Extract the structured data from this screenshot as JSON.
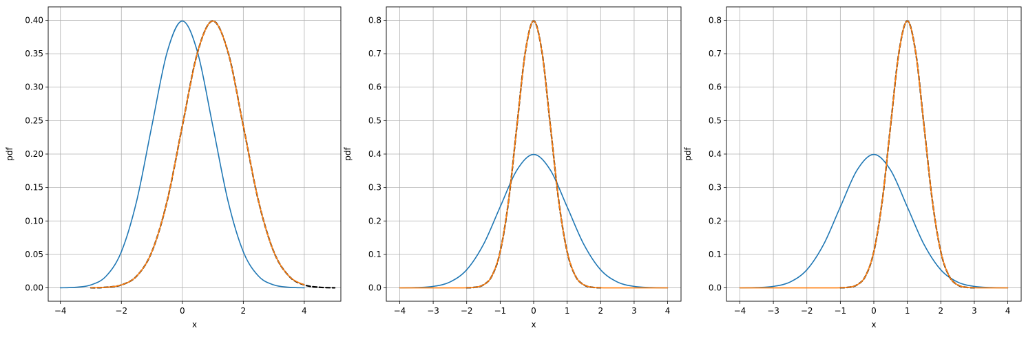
{
  "chart_data": [
    {
      "type": "line",
      "title": "",
      "xlabel": "x",
      "ylabel": "pdf",
      "xlim": [
        -4.4,
        5.2
      ],
      "ylim": [
        -0.02,
        0.42
      ],
      "xticks": [
        -4,
        -2,
        0,
        2,
        4
      ],
      "xtick_labels": [
        "−4",
        "−2",
        "0",
        "2",
        "4"
      ],
      "yticks": [
        0.0,
        0.05,
        0.1,
        0.15,
        0.2,
        0.25,
        0.3,
        0.35,
        0.4
      ],
      "ytick_labels": [
        "0.00",
        "0.05",
        "0.10",
        "0.15",
        "0.20",
        "0.25",
        "0.30",
        "0.35",
        "0.40"
      ],
      "grid": true,
      "legend": "none",
      "series": [
        {
          "color": "#1f77b4",
          "style": "solid",
          "x": [
            -4.0,
            -3.5,
            -3.0,
            -2.5,
            -2.0,
            -1.5,
            -1.0,
            -0.5,
            0.0,
            0.5,
            1.0,
            1.5,
            2.0,
            2.5,
            3.0,
            3.5,
            4.0
          ],
          "y": [
            0.0001,
            0.0009,
            0.0044,
            0.0175,
            0.054,
            0.1295,
            0.242,
            0.3521,
            0.3989,
            0.3521,
            0.242,
            0.1295,
            0.054,
            0.0175,
            0.0044,
            0.0009,
            0.0001
          ]
        },
        {
          "color": "#000000",
          "style": "dashed",
          "x": [
            -3.0,
            -2.5,
            -2.0,
            -1.5,
            -1.0,
            -0.5,
            0.0,
            0.5,
            1.0,
            1.5,
            2.0,
            2.5,
            3.0,
            3.5,
            4.0,
            4.5,
            5.0
          ],
          "y": [
            0.0001,
            0.0009,
            0.0044,
            0.0175,
            0.054,
            0.1295,
            0.242,
            0.3521,
            0.3989,
            0.3521,
            0.242,
            0.1295,
            0.054,
            0.0175,
            0.0044,
            0.0009,
            0.0001
          ]
        },
        {
          "color": "#ff7f0e",
          "style": "solid",
          "x": [
            -3.0,
            -2.5,
            -2.0,
            -1.5,
            -1.0,
            -0.5,
            0.0,
            0.5,
            1.0,
            1.5,
            2.0,
            2.5,
            3.0,
            3.5,
            4.0
          ],
          "y": [
            0.0001,
            0.0009,
            0.0044,
            0.0175,
            0.054,
            0.1295,
            0.242,
            0.3521,
            0.3989,
            0.3521,
            0.242,
            0.1295,
            0.054,
            0.0175,
            0.0044
          ]
        }
      ]
    },
    {
      "type": "line",
      "title": "",
      "xlabel": "x",
      "ylabel": "pdf",
      "xlim": [
        -4.4,
        4.4
      ],
      "ylim": [
        -0.04,
        0.84
      ],
      "xticks": [
        -4,
        -3,
        -2,
        -1,
        0,
        1,
        2,
        3,
        4
      ],
      "xtick_labels": [
        "−4",
        "−3",
        "−2",
        "−1",
        "0",
        "1",
        "2",
        "3",
        "4"
      ],
      "yticks": [
        0.0,
        0.1,
        0.2,
        0.3,
        0.4,
        0.5,
        0.6,
        0.7,
        0.8
      ],
      "ytick_labels": [
        "0.0",
        "0.1",
        "0.2",
        "0.3",
        "0.4",
        "0.5",
        "0.6",
        "0.7",
        "0.8"
      ],
      "grid": true,
      "legend": "none",
      "series": [
        {
          "color": "#1f77b4",
          "style": "solid",
          "x": [
            -4.0,
            -3.5,
            -3.0,
            -2.5,
            -2.0,
            -1.5,
            -1.0,
            -0.5,
            0.0,
            0.5,
            1.0,
            1.5,
            2.0,
            2.5,
            3.0,
            3.5,
            4.0
          ],
          "y": [
            0.0001,
            0.0009,
            0.0044,
            0.0175,
            0.054,
            0.1295,
            0.242,
            0.3521,
            0.3989,
            0.3521,
            0.242,
            0.1295,
            0.054,
            0.0175,
            0.0044,
            0.0009,
            0.0001
          ]
        },
        {
          "color": "#000000",
          "style": "dashed",
          "x": [
            -2.0,
            -1.75,
            -1.5,
            -1.25,
            -1.0,
            -0.75,
            -0.5,
            -0.25,
            0.0,
            0.25,
            0.5,
            0.75,
            1.0,
            1.25,
            1.5,
            1.75,
            2.0
          ],
          "y": [
            0.0003,
            0.0018,
            0.0089,
            0.035,
            0.108,
            0.259,
            0.484,
            0.704,
            0.798,
            0.704,
            0.484,
            0.259,
            0.108,
            0.035,
            0.0089,
            0.0018,
            0.0003
          ]
        },
        {
          "color": "#ff7f0e",
          "style": "solid",
          "x": [
            -4.0,
            -3.0,
            -2.5,
            -2.0,
            -1.75,
            -1.5,
            -1.25,
            -1.0,
            -0.75,
            -0.5,
            -0.25,
            0.0,
            0.25,
            0.5,
            0.75,
            1.0,
            1.25,
            1.5,
            1.75,
            2.0,
            2.5,
            3.0,
            4.0
          ],
          "y": [
            0.0,
            0.0,
            0.0,
            0.0003,
            0.0018,
            0.0089,
            0.035,
            0.108,
            0.259,
            0.484,
            0.704,
            0.798,
            0.704,
            0.484,
            0.259,
            0.108,
            0.035,
            0.0089,
            0.0018,
            0.0003,
            0.0,
            0.0,
            0.0
          ]
        }
      ]
    },
    {
      "type": "line",
      "title": "",
      "xlabel": "x",
      "ylabel": "pdf",
      "xlim": [
        -4.4,
        4.4
      ],
      "ylim": [
        -0.04,
        0.84
      ],
      "xticks": [
        -4,
        -3,
        -2,
        -1,
        0,
        1,
        2,
        3,
        4
      ],
      "xtick_labels": [
        "−4",
        "−3",
        "−2",
        "−1",
        "0",
        "1",
        "2",
        "3",
        "4"
      ],
      "yticks": [
        0.0,
        0.1,
        0.2,
        0.3,
        0.4,
        0.5,
        0.6,
        0.7,
        0.8
      ],
      "ytick_labels": [
        "0.0",
        "0.1",
        "0.2",
        "0.3",
        "0.4",
        "0.5",
        "0.6",
        "0.7",
        "0.8"
      ],
      "grid": true,
      "legend": "none",
      "series": [
        {
          "color": "#1f77b4",
          "style": "solid",
          "x": [
            -4.0,
            -3.5,
            -3.0,
            -2.5,
            -2.0,
            -1.5,
            -1.0,
            -0.5,
            0.0,
            0.5,
            1.0,
            1.5,
            2.0,
            2.5,
            3.0,
            3.5,
            4.0
          ],
          "y": [
            0.0001,
            0.0009,
            0.0044,
            0.0175,
            0.054,
            0.1295,
            0.242,
            0.3521,
            0.3989,
            0.3521,
            0.242,
            0.1295,
            0.054,
            0.0175,
            0.0044,
            0.0009,
            0.0001
          ]
        },
        {
          "color": "#000000",
          "style": "dashed",
          "x": [
            -1.0,
            -0.75,
            -0.5,
            -0.25,
            0.0,
            0.25,
            0.5,
            0.75,
            1.0,
            1.25,
            1.5,
            1.75,
            2.0,
            2.25,
            2.5,
            2.75,
            3.0
          ],
          "y": [
            0.0003,
            0.0018,
            0.0089,
            0.035,
            0.108,
            0.259,
            0.484,
            0.704,
            0.798,
            0.704,
            0.484,
            0.259,
            0.108,
            0.035,
            0.0089,
            0.0018,
            0.0003
          ]
        },
        {
          "color": "#ff7f0e",
          "style": "solid",
          "x": [
            -4.0,
            -2.0,
            -1.5,
            -1.0,
            -0.75,
            -0.5,
            -0.25,
            0.0,
            0.25,
            0.5,
            0.75,
            1.0,
            1.25,
            1.5,
            1.75,
            2.0,
            2.25,
            2.5,
            2.75,
            3.0,
            3.5,
            4.0
          ],
          "y": [
            0.0,
            0.0,
            0.0,
            0.0003,
            0.0018,
            0.0089,
            0.035,
            0.108,
            0.259,
            0.484,
            0.704,
            0.798,
            0.704,
            0.484,
            0.259,
            0.108,
            0.035,
            0.0089,
            0.0018,
            0.0003,
            0.0,
            0.0
          ]
        }
      ]
    }
  ]
}
